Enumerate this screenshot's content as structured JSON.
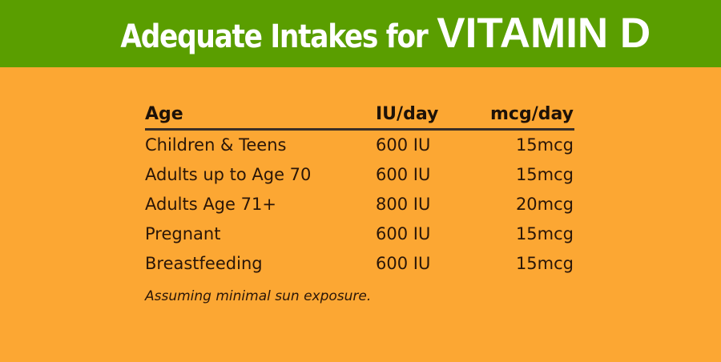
{
  "header": {
    "title_prefix": "Adequate Intakes for",
    "title_emphasis": "VITAMIN D",
    "background_color": "#5a9e00",
    "text_color": "#ffffff"
  },
  "page": {
    "background_color": "#fca733"
  },
  "table": {
    "columns": [
      "Age",
      "IU/day",
      "mcg/day"
    ],
    "rows": [
      {
        "age": "Children & Teens",
        "iu": "600 IU",
        "mcg": "15mcg"
      },
      {
        "age": "Adults up to Age 70",
        "iu": "600 IU",
        "mcg": "15mcg"
      },
      {
        "age": "Adults Age 71+",
        "iu": "800 IU",
        "mcg": "20mcg"
      },
      {
        "age": "Pregnant",
        "iu": "600 IU",
        "mcg": "15mcg"
      },
      {
        "age": "Breastfeeding",
        "iu": "600 IU",
        "mcg": "15mcg"
      }
    ]
  },
  "footnote": "Assuming minimal sun exposure."
}
